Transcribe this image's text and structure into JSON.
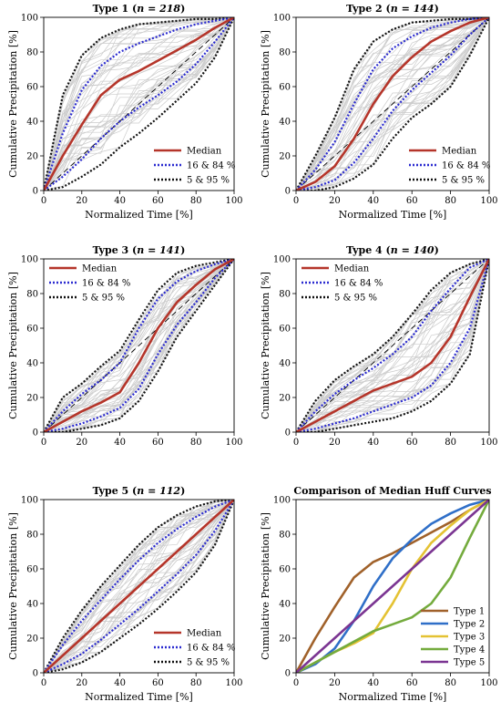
{
  "figure": {
    "background": "#ffffff"
  },
  "styles": {
    "Median": {
      "color": "#b5352a",
      "dash": ""
    },
    "16 & 84 %": {
      "color": "#2b2bd0",
      "dash": "2,2"
    },
    "5 & 95 %": {
      "color": "#111111",
      "dash": "2,2"
    },
    "members": {
      "color": "#cccccc"
    },
    "reference": {
      "color": "#000000",
      "dash": "6,4"
    }
  },
  "chart_data": [
    {
      "type": "line",
      "title": "Type 1",
      "count_label": "n = 218",
      "xlabel": "Normalized Time [%]",
      "ylabel": "Cumulative Precipitation [%]",
      "xlim": [
        0,
        100
      ],
      "ylim": [
        0,
        100
      ],
      "xticks": [
        0,
        20,
        40,
        60,
        80,
        100
      ],
      "yticks": [
        0,
        20,
        40,
        60,
        80,
        100
      ],
      "legend_position": "bottom-right",
      "legend": [
        "Median",
        "16 & 84 %",
        "5 & 95 %"
      ],
      "x": [
        0,
        10,
        20,
        30,
        40,
        50,
        60,
        70,
        80,
        90,
        100
      ],
      "series": [
        {
          "name": "Median",
          "values": [
            0,
            20,
            38,
            55,
            64,
            69,
            75,
            81,
            87,
            94,
            100
          ]
        },
        {
          "name": "16 & 84 %",
          "values": [
            0,
            33,
            58,
            72,
            80,
            85,
            89,
            93,
            96,
            98,
            100
          ]
        },
        {
          "name": "16 & 84 %",
          "values": [
            0,
            8,
            18,
            30,
            40,
            48,
            55,
            63,
            73,
            86,
            100
          ]
        },
        {
          "name": "5 & 95 %",
          "values": [
            0,
            55,
            78,
            88,
            93,
            96,
            97,
            98,
            99,
            99,
            100
          ]
        },
        {
          "name": "5 & 95 %",
          "values": [
            0,
            2,
            8,
            15,
            25,
            33,
            42,
            52,
            62,
            77,
            100
          ]
        }
      ]
    },
    {
      "type": "line",
      "title": "Type 2",
      "count_label": "n = 144",
      "xlabel": "Normalized Time [%]",
      "ylabel": "Cumulative Precipitation [%]",
      "xlim": [
        0,
        100
      ],
      "ylim": [
        0,
        100
      ],
      "xticks": [
        0,
        20,
        40,
        60,
        80,
        100
      ],
      "yticks": [
        0,
        20,
        40,
        60,
        80,
        100
      ],
      "legend_position": "bottom-right",
      "legend": [
        "Median",
        "16 & 84 %",
        "5 & 95 %"
      ],
      "x": [
        0,
        10,
        20,
        30,
        40,
        50,
        60,
        70,
        80,
        90,
        100
      ],
      "series": [
        {
          "name": "Median",
          "values": [
            0,
            5,
            14,
            30,
            50,
            66,
            77,
            86,
            92,
            97,
            100
          ]
        },
        {
          "name": "16 & 84 %",
          "values": [
            0,
            12,
            28,
            50,
            70,
            82,
            89,
            94,
            97,
            99,
            100
          ]
        },
        {
          "name": "16 & 84 %",
          "values": [
            0,
            2,
            6,
            16,
            30,
            46,
            58,
            68,
            78,
            90,
            100
          ]
        },
        {
          "name": "5 & 95 %",
          "values": [
            0,
            20,
            42,
            70,
            86,
            93,
            97,
            98,
            99,
            99,
            100
          ]
        },
        {
          "name": "5 & 95 %",
          "values": [
            0,
            0,
            2,
            7,
            15,
            30,
            42,
            50,
            60,
            78,
            100
          ]
        }
      ]
    },
    {
      "type": "line",
      "title": "Type 3",
      "count_label": "n = 141",
      "xlabel": "",
      "ylabel": "Cumulative Precipitation [%]",
      "xlim": [
        0,
        100
      ],
      "ylim": [
        0,
        100
      ],
      "xticks": [
        0,
        20,
        40,
        60,
        80,
        100
      ],
      "yticks": [
        0,
        20,
        40,
        60,
        80,
        100
      ],
      "legend_position": "top-left",
      "legend": [
        "Median",
        "16 & 84 %",
        "5 & 95 %"
      ],
      "x": [
        0,
        10,
        20,
        30,
        40,
        50,
        60,
        70,
        80,
        90,
        100
      ],
      "series": [
        {
          "name": "Median",
          "values": [
            0,
            6,
            12,
            17,
            23,
            40,
            60,
            75,
            85,
            94,
            100
          ]
        },
        {
          "name": "16 & 84 %",
          "values": [
            0,
            12,
            22,
            30,
            40,
            60,
            77,
            87,
            93,
            97,
            100
          ]
        },
        {
          "name": "16 & 84 %",
          "values": [
            0,
            2,
            5,
            9,
            14,
            25,
            45,
            62,
            75,
            89,
            100
          ]
        },
        {
          "name": "5 & 95 %",
          "values": [
            0,
            20,
            28,
            38,
            47,
            65,
            82,
            92,
            96,
            98,
            100
          ]
        },
        {
          "name": "5 & 95 %",
          "values": [
            0,
            0,
            2,
            4,
            8,
            18,
            35,
            55,
            70,
            85,
            100
          ]
        }
      ]
    },
    {
      "type": "line",
      "title": "Type 4",
      "count_label": "n = 140",
      "xlabel": "",
      "ylabel": "Cumulative Precipitation [%]",
      "xlim": [
        0,
        100
      ],
      "ylim": [
        0,
        100
      ],
      "xticks": [
        0,
        20,
        40,
        60,
        80,
        100
      ],
      "yticks": [
        0,
        20,
        40,
        60,
        80,
        100
      ],
      "legend_position": "top-left",
      "legend": [
        "Median",
        "16 & 84 %",
        "5 & 95 %"
      ],
      "x": [
        0,
        10,
        20,
        30,
        40,
        50,
        60,
        70,
        80,
        90,
        100
      ],
      "series": [
        {
          "name": "Median",
          "values": [
            0,
            6,
            12,
            18,
            24,
            28,
            32,
            40,
            55,
            78,
            100
          ]
        },
        {
          "name": "16 & 84 %",
          "values": [
            0,
            12,
            22,
            30,
            37,
            45,
            55,
            70,
            83,
            95,
            100
          ]
        },
        {
          "name": "16 & 84 %",
          "values": [
            0,
            2,
            5,
            8,
            12,
            16,
            20,
            27,
            40,
            60,
            100
          ]
        },
        {
          "name": "5 & 95 %",
          "values": [
            0,
            18,
            30,
            38,
            45,
            55,
            68,
            82,
            92,
            97,
            100
          ]
        },
        {
          "name": "5 & 95 %",
          "values": [
            0,
            0,
            2,
            4,
            6,
            8,
            12,
            18,
            28,
            45,
            100
          ]
        }
      ]
    },
    {
      "type": "line",
      "title": "Type 5",
      "count_label": "n = 112",
      "xlabel": "Normalized Time [%]",
      "ylabel": "Cumulative Precipitation [%]",
      "xlim": [
        0,
        100
      ],
      "ylim": [
        0,
        100
      ],
      "xticks": [
        0,
        20,
        40,
        60,
        80,
        100
      ],
      "yticks": [
        0,
        20,
        40,
        60,
        80,
        100
      ],
      "legend_position": "bottom-right",
      "legend": [
        "Median",
        "16 & 84 %",
        "5 & 95 %"
      ],
      "x": [
        0,
        10,
        20,
        30,
        40,
        50,
        60,
        70,
        80,
        90,
        100
      ],
      "series": [
        {
          "name": "Median",
          "values": [
            0,
            10,
            20,
            30,
            40,
            50,
            60,
            70,
            80,
            90,
            100
          ]
        },
        {
          "name": "16 & 84 %",
          "values": [
            0,
            16,
            30,
            42,
            54,
            65,
            75,
            83,
            90,
            96,
            100
          ]
        },
        {
          "name": "16 & 84 %",
          "values": [
            0,
            5,
            11,
            19,
            28,
            37,
            47,
            57,
            68,
            82,
            100
          ]
        },
        {
          "name": "5 & 95 %",
          "values": [
            0,
            20,
            36,
            50,
            62,
            74,
            84,
            91,
            96,
            99,
            100
          ]
        },
        {
          "name": "5 & 95 %",
          "values": [
            0,
            2,
            6,
            12,
            20,
            28,
            37,
            47,
            58,
            74,
            100
          ]
        }
      ]
    },
    {
      "type": "line",
      "title": "Comparison of Median Huff Curves",
      "count_label": "",
      "xlabel": "Normalized Time [%]",
      "ylabel": "Cumulative Precipitation [%]",
      "xlim": [
        0,
        100
      ],
      "ylim": [
        0,
        100
      ],
      "xticks": [
        0,
        20,
        40,
        60,
        80,
        100
      ],
      "yticks": [
        0,
        20,
        40,
        60,
        80,
        100
      ],
      "legend_position": "bottom-right",
      "legend": [
        "Type 1",
        "Type 2",
        "Type 3",
        "Type 4",
        "Type 5"
      ],
      "x": [
        0,
        10,
        20,
        30,
        40,
        50,
        60,
        70,
        80,
        90,
        100
      ],
      "series": [
        {
          "name": "Type 1",
          "color": "#a0612a",
          "values": [
            0,
            20,
            38,
            55,
            64,
            69,
            75,
            81,
            87,
            94,
            100
          ]
        },
        {
          "name": "Type 2",
          "color": "#2f6fc8",
          "values": [
            0,
            5,
            14,
            30,
            50,
            66,
            77,
            86,
            92,
            97,
            100
          ]
        },
        {
          "name": "Type 3",
          "color": "#e4c233",
          "values": [
            0,
            6,
            12,
            17,
            23,
            40,
            60,
            75,
            85,
            94,
            100
          ]
        },
        {
          "name": "Type 4",
          "color": "#74ab3d",
          "values": [
            0,
            6,
            12,
            18,
            24,
            28,
            32,
            40,
            55,
            78,
            100
          ]
        },
        {
          "name": "Type 5",
          "color": "#7b3592",
          "values": [
            0,
            10,
            20,
            30,
            40,
            50,
            60,
            70,
            80,
            90,
            100
          ]
        }
      ]
    }
  ]
}
